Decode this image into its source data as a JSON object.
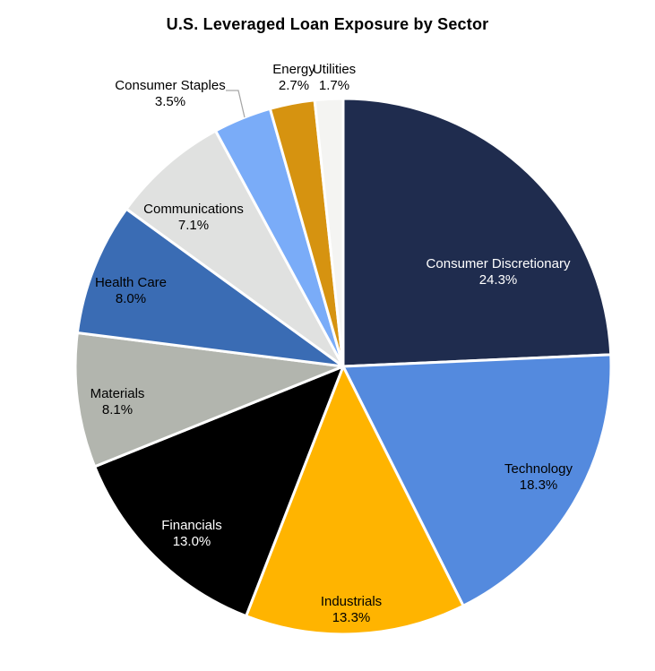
{
  "chart_data": {
    "type": "pie",
    "title": "U.S. Leveraged Loan Exposure by Sector",
    "start_angle_deg": 0,
    "direction": "clockwise",
    "legend_position": "none",
    "label_format": "name newline percent with one decimal",
    "slices": [
      {
        "label": "Consumer Discretionary",
        "value": 24.3,
        "color": "#1f2c4e",
        "text_color": "#ffffff",
        "label_placement": "inside"
      },
      {
        "label": "Technology",
        "value": 18.3,
        "color": "#548ade",
        "text_color": "#000000",
        "label_placement": "inside"
      },
      {
        "label": "Industrials",
        "value": 13.3,
        "color": "#ffb400",
        "text_color": "#000000",
        "label_placement": "inside"
      },
      {
        "label": "Financials",
        "value": 13.0,
        "color": "#000000",
        "text_color": "#ffffff",
        "label_placement": "inside"
      },
      {
        "label": "Materials",
        "value": 8.1,
        "color": "#b2b5ae",
        "text_color": "#000000",
        "label_placement": "inside"
      },
      {
        "label": "Health Care",
        "value": 8.0,
        "color": "#3a6cb4",
        "text_color": "#000000",
        "label_placement": "inside"
      },
      {
        "label": "Communications",
        "value": 7.1,
        "color": "#e0e1e0",
        "text_color": "#000000",
        "label_placement": "inside"
      },
      {
        "label": "Consumer Staples",
        "value": 3.5,
        "color": "#7aacf8",
        "text_color": "#000000",
        "label_placement": "outside",
        "leader_line": true
      },
      {
        "label": "Energy",
        "value": 2.7,
        "color": "#d69310",
        "text_color": "#000000",
        "label_placement": "outside"
      },
      {
        "label": "Utilities",
        "value": 1.7,
        "color": "#f4f4f2",
        "text_color": "#000000",
        "label_placement": "outside"
      }
    ],
    "leader_line_color": "#a6a6a6",
    "slice_border_color": "#ffffff"
  }
}
